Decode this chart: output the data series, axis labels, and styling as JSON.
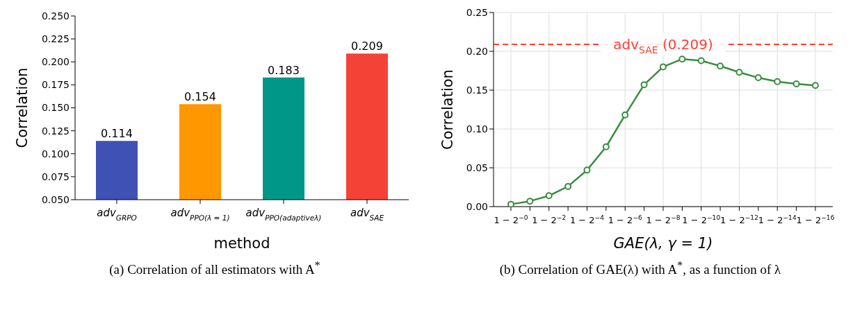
{
  "chart_data": [
    {
      "type": "bar",
      "categories": [
        "adv$_{GRPO}$",
        "adv$_{PPO(λ = 1)}$",
        "adv$_{PPO(adaptiveλ)}$",
        "adv$_{SAE}$"
      ],
      "values": [
        0.114,
        0.154,
        0.183,
        0.209
      ],
      "colors": [
        "#3f51b5",
        "#ff9800",
        "#009688",
        "#f44336"
      ],
      "data_labels": true,
      "xlabel": "method",
      "ylabel": "Correlation",
      "ylim": [
        0.05,
        0.25
      ],
      "yticks": [
        {
          "value": 0.05,
          "label": "0.050"
        },
        {
          "value": 0.075,
          "label": "0.075"
        },
        {
          "value": 0.1,
          "label": "0.100"
        },
        {
          "value": 0.125,
          "label": "0.125"
        },
        {
          "value": 0.15,
          "label": "0.150"
        },
        {
          "value": 0.175,
          "label": "0.175"
        },
        {
          "value": 0.2,
          "label": "0.200"
        },
        {
          "value": 0.225,
          "label": "0.225"
        },
        {
          "value": 0.25,
          "label": "0.250"
        }
      ],
      "annotations": [
        "(a) Correlation of all estimators with A$^{*}$"
      ]
    },
    {
      "type": "line",
      "categories": [
        "1 − 2$^{−0}$",
        null,
        "1 − 2$^{−2}$",
        null,
        "1 − 2$^{−4}$",
        null,
        "1 − 2$^{−6}$",
        null,
        "1 − 2$^{−8}$",
        null,
        "1 − 2$^{−10}$",
        null,
        "1 − 2$^{−12}$",
        null,
        "1 − 2$^{−14}$",
        null,
        "1 − 2$^{−16}$"
      ],
      "series": [
        {
          "color": "#388e3c",
          "values": [
            0.003,
            0.007,
            0.014,
            0.026,
            0.047,
            0.077,
            0.118,
            0.157,
            0.18,
            0.19,
            0.188,
            0.181,
            0.173,
            0.166,
            0.161,
            0.158,
            0.156
          ]
        }
      ],
      "marker": "circle",
      "grid": true,
      "xlabel": "GAE(λ, γ = 1)",
      "ylabel": "Correlation",
      "ylim": [
        0,
        0.25
      ],
      "yticks": [
        {
          "value": 0,
          "label": "0.00"
        },
        {
          "value": 0.05,
          "label": "0.05"
        },
        {
          "value": 0.1,
          "label": "0.10"
        },
        {
          "value": 0.15,
          "label": "0.15"
        },
        {
          "value": 0.2,
          "label": "0.20"
        },
        {
          "value": 0.25,
          "label": "0.25"
        }
      ],
      "ref_lines": [
        {
          "axis": "y",
          "value": 0.209,
          "label": "adv$_{SAE}$ (0.209)",
          "color": "#f44336",
          "line_style": "dashed"
        }
      ],
      "annotations": [
        "(b) Correlation of GAE(λ) with A$^{*}$, as a function of λ"
      ]
    }
  ]
}
